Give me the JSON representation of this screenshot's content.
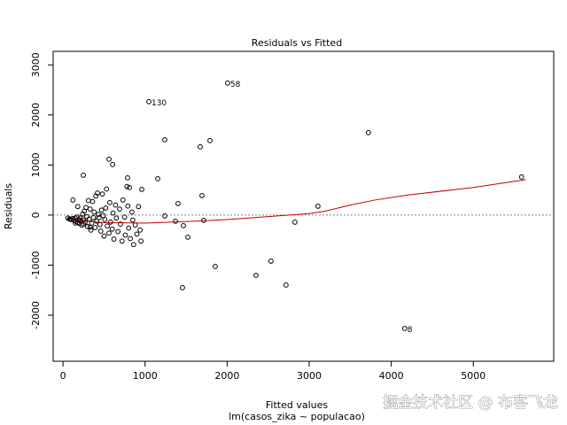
{
  "chart_data": {
    "type": "scatter",
    "title": "Residuals vs Fitted",
    "x_label": "Fitted values",
    "y_label": "Residuals",
    "subtitle": "lm(casos_zika ~ populacao)",
    "xlim": [
      -120,
      5980
    ],
    "ylim": [
      -2920,
      3270
    ],
    "xticks": [
      0,
      1000,
      2000,
      3000,
      4000,
      5000
    ],
    "yticks": [
      -2000,
      -1000,
      0,
      1000,
      2000,
      3000
    ],
    "reference_line": 0,
    "point_color": "#000000",
    "points": {
      "x": [
        80,
        100,
        120,
        140,
        150,
        160,
        170,
        180,
        190,
        200,
        210,
        220,
        230,
        240,
        250,
        260,
        270,
        280,
        290,
        300,
        310,
        320,
        330,
        340,
        350,
        360,
        370,
        380,
        390,
        400,
        410,
        420,
        430,
        450,
        460,
        470,
        480,
        490,
        500,
        510,
        520,
        530,
        540,
        560,
        570,
        580,
        600,
        610,
        620,
        640,
        650,
        670,
        690,
        700,
        720,
        730,
        750,
        760,
        780,
        790,
        800,
        820,
        840,
        850,
        860,
        880,
        900,
        920,
        940,
        950,
        120,
        90,
        250,
        330,
        200,
        180,
        150,
        60,
        440,
        787,
        809,
        561,
        604,
        248,
        960,
        1154,
        1240,
        1240,
        1370,
        1402,
        1456,
        1467,
        1521,
        1672,
        1694,
        1715,
        1791,
        1855,
        2352,
        2535,
        2718,
        2826,
        3107,
        3722,
        5588
      ],
      "y": [
        -80,
        -90,
        -70,
        -110,
        -60,
        -130,
        -40,
        -150,
        -90,
        -170,
        -60,
        -120,
        -200,
        20,
        -100,
        80,
        -140,
        150,
        -30,
        -230,
        290,
        -80,
        120,
        -300,
        -160,
        270,
        -50,
        60,
        -250,
        380,
        -120,
        440,
        10,
        -190,
        -320,
        100,
        420,
        -10,
        -420,
        -90,
        140,
        520,
        -220,
        -360,
        250,
        -140,
        -280,
        40,
        -480,
        200,
        -60,
        -330,
        120,
        -180,
        -520,
        300,
        -40,
        -400,
        570,
        180,
        -260,
        -470,
        60,
        -100,
        -590,
        -200,
        -380,
        170,
        -300,
        -520,
        300,
        -80,
        -180,
        -240,
        -100,
        170,
        -160,
        -60,
        -50,
        743,
        549,
        1115,
        1009,
        796,
        513,
        726,
        1504,
        -18,
        -124,
        230,
        -1451,
        -212,
        -442,
        1363,
        389,
        -106,
        1487,
        -1027,
        -1204,
        -920,
        -1398,
        -142,
        177,
        1646,
        761
      ]
    },
    "labeled_points": {
      "labels": [
        "58",
        "130",
        "8"
      ],
      "x": [
        2006,
        1046,
        4164
      ],
      "y": [
        2637,
        2265,
        -2265
      ]
    },
    "smooth": {
      "color": "#c00000",
      "x": [
        100,
        500,
        1000,
        1500,
        2000,
        2500,
        3000,
        3200,
        3500,
        3800,
        4200,
        5000,
        5640
      ],
      "y": [
        -100,
        -150,
        -160,
        -130,
        -90,
        -30,
        30,
        80,
        200,
        300,
        400,
        550,
        708
      ]
    }
  },
  "watermark": "掘金技术社区 @ 布客飞龙"
}
